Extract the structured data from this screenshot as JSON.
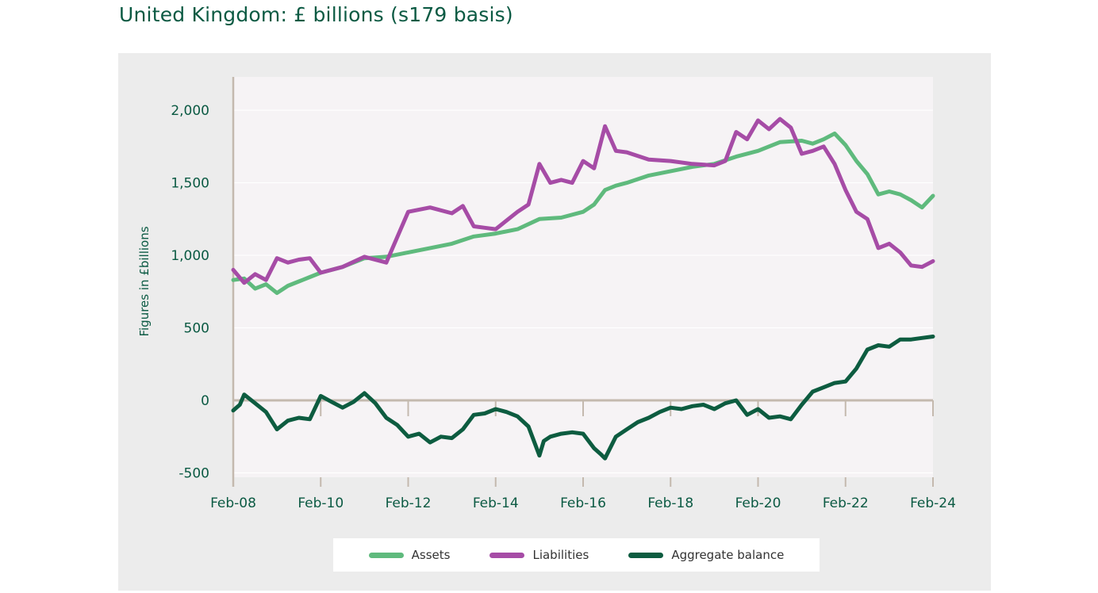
{
  "page": {
    "title": "United Kingdom: £ billions (s179 basis)"
  },
  "chart_data": {
    "type": "line",
    "title": "United Kingdom: £ billions (s179 basis)",
    "xlabel": "",
    "ylabel": "Figures in £billions",
    "ylim": [
      -530,
      2230
    ],
    "xlim": [
      2008,
      2024
    ],
    "yticks": [
      -500,
      0,
      500,
      1000,
      1500,
      2000
    ],
    "ytick_labels": [
      "-500",
      "0",
      "500",
      "1,000",
      "1,500",
      "2,000"
    ],
    "xticks": [
      2008,
      2010,
      2012,
      2014,
      2016,
      2018,
      2020,
      2022,
      2024
    ],
    "xtick_labels": [
      "Feb-08",
      "Feb-10",
      "Feb-12",
      "Feb-14",
      "Feb-16",
      "Feb-18",
      "Feb-20",
      "Feb-22",
      "Feb-24"
    ],
    "colors": {
      "background": "#ececec",
      "plot_bg": "#f6f3f5",
      "axis": "#c4b9ae",
      "grid": "#ffffff"
    },
    "series": [
      {
        "name": "Assets",
        "color": "#5fba7d",
        "x": [
          2008,
          2008.25,
          2008.5,
          2008.75,
          2009,
          2009.25,
          2009.5,
          2009.75,
          2010,
          2010.5,
          2011,
          2011.5,
          2012,
          2012.5,
          2013,
          2013.5,
          2014,
          2014.5,
          2015,
          2015.5,
          2016,
          2016.25,
          2016.5,
          2016.75,
          2017,
          2017.5,
          2018,
          2018.5,
          2019,
          2019.5,
          2020,
          2020.5,
          2021,
          2021.25,
          2021.5,
          2021.75,
          2022,
          2022.25,
          2022.5,
          2022.75,
          2023,
          2023.25,
          2023.5,
          2023.75,
          2024
        ],
        "values": [
          830,
          840,
          770,
          800,
          740,
          790,
          820,
          850,
          880,
          920,
          980,
          990,
          1020,
          1050,
          1080,
          1130,
          1150,
          1180,
          1250,
          1260,
          1300,
          1350,
          1450,
          1480,
          1500,
          1550,
          1580,
          1610,
          1630,
          1680,
          1720,
          1780,
          1790,
          1770,
          1800,
          1840,
          1760,
          1650,
          1560,
          1420,
          1440,
          1420,
          1380,
          1330,
          1410
        ]
      },
      {
        "name": "Liabilities",
        "color": "#a64ca6",
        "x": [
          2008,
          2008.25,
          2008.5,
          2008.75,
          2009,
          2009.25,
          2009.5,
          2009.75,
          2010,
          2010.5,
          2011,
          2011.5,
          2012,
          2012.5,
          2013,
          2013.25,
          2013.5,
          2013.75,
          2014,
          2014.5,
          2014.75,
          2015,
          2015.25,
          2015.5,
          2015.75,
          2016,
          2016.25,
          2016.5,
          2016.75,
          2017,
          2017.5,
          2018,
          2018.5,
          2019,
          2019.25,
          2019.5,
          2019.75,
          2020,
          2020.25,
          2020.5,
          2020.75,
          2021,
          2021.25,
          2021.5,
          2021.75,
          2022,
          2022.25,
          2022.5,
          2022.75,
          2023,
          2023.25,
          2023.5,
          2023.75,
          2024
        ],
        "values": [
          900,
          810,
          870,
          830,
          980,
          950,
          970,
          980,
          880,
          920,
          990,
          950,
          1300,
          1330,
          1290,
          1340,
          1200,
          1190,
          1180,
          1300,
          1350,
          1630,
          1500,
          1520,
          1500,
          1650,
          1600,
          1890,
          1720,
          1710,
          1660,
          1650,
          1630,
          1620,
          1650,
          1850,
          1800,
          1930,
          1870,
          1940,
          1880,
          1700,
          1720,
          1750,
          1630,
          1450,
          1300,
          1250,
          1050,
          1080,
          1020,
          930,
          920,
          960
        ]
      },
      {
        "name": "Aggregate balance",
        "color": "#0d5c40",
        "x": [
          2008,
          2008.15,
          2008.25,
          2008.5,
          2008.75,
          2009,
          2009.25,
          2009.5,
          2009.75,
          2010,
          2010.25,
          2010.5,
          2010.75,
          2011,
          2011.25,
          2011.5,
          2011.75,
          2012,
          2012.25,
          2012.5,
          2012.75,
          2013,
          2013.25,
          2013.5,
          2013.75,
          2014,
          2014.25,
          2014.5,
          2014.75,
          2015,
          2015.1,
          2015.25,
          2015.5,
          2015.75,
          2016,
          2016.25,
          2016.4,
          2016.5,
          2016.75,
          2017,
          2017.25,
          2017.5,
          2017.75,
          2018,
          2018.25,
          2018.5,
          2018.75,
          2019,
          2019.25,
          2019.5,
          2019.75,
          2020,
          2020.25,
          2020.5,
          2020.75,
          2021,
          2021.25,
          2021.5,
          2021.75,
          2022,
          2022.25,
          2022.5,
          2022.75,
          2023,
          2023.25,
          2023.5,
          2023.75,
          2024
        ],
        "values": [
          -70,
          -30,
          40,
          -20,
          -80,
          -200,
          -140,
          -120,
          -130,
          30,
          -10,
          -50,
          -10,
          50,
          -20,
          -120,
          -170,
          -250,
          -230,
          -290,
          -250,
          -260,
          -200,
          -100,
          -90,
          -60,
          -80,
          -110,
          -180,
          -380,
          -280,
          -250,
          -230,
          -220,
          -230,
          -330,
          -370,
          -400,
          -250,
          -200,
          -150,
          -120,
          -80,
          -50,
          -60,
          -40,
          -30,
          -60,
          -20,
          0,
          -100,
          -60,
          -120,
          -110,
          -130,
          -30,
          60,
          90,
          120,
          130,
          220,
          350,
          380,
          370,
          420,
          420,
          430,
          440
        ]
      }
    ]
  },
  "legend": {
    "assets_label": "Assets",
    "liabilities_label": "Liabilities",
    "aggregate_label": "Aggregate balance"
  }
}
